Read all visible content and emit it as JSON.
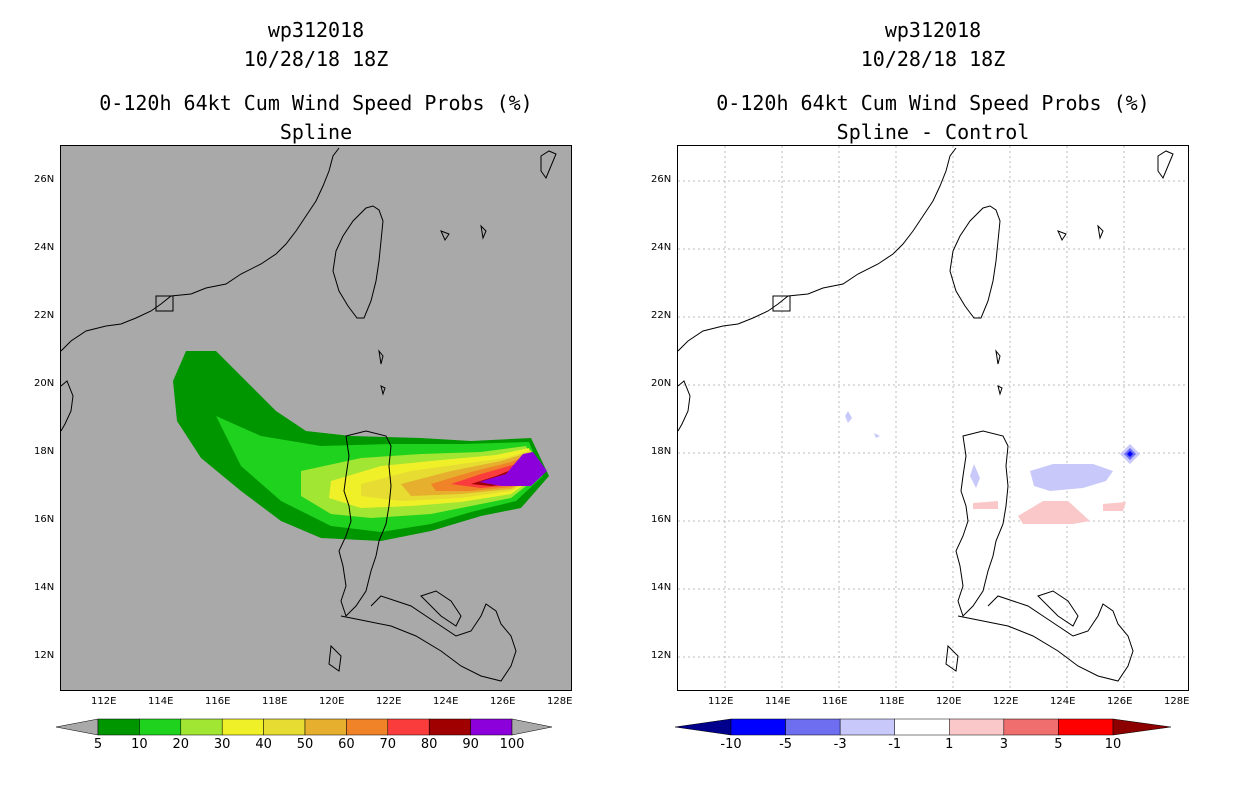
{
  "panels": [
    {
      "id": "left",
      "title_lines": [
        "wp312018",
        "10/28/18 18Z",
        "0-120h 64kt Cum Wind Speed Probs (%)",
        "Spline"
      ],
      "background": "#a9a9a9",
      "grid": false,
      "lon_ticks": [
        "112E",
        "114E",
        "116E",
        "118E",
        "120E",
        "122E",
        "124E",
        "126E",
        "128E"
      ],
      "lat_ticks": [
        "26N",
        "24N",
        "22N",
        "20N",
        "18N",
        "16N",
        "14N",
        "12N"
      ],
      "colorbar": {
        "colors": [
          "#009600",
          "#1ed21e",
          "#a0e632",
          "#f0f028",
          "#e6dc32",
          "#e6af2d",
          "#f08228",
          "#fa3c3c",
          "#a00000",
          "#8c00dc"
        ],
        "labels": [
          "5",
          "10",
          "20",
          "30",
          "40",
          "50",
          "60",
          "70",
          "80",
          "90",
          "100"
        ],
        "arrow_color": "#a9a9a9"
      }
    },
    {
      "id": "right",
      "title_lines": [
        "wp312018",
        "10/28/18 18Z",
        "0-120h 64kt Cum Wind Speed Probs (%)",
        "Spline - Control"
      ],
      "background": "#ffffff",
      "grid": true,
      "lon_ticks": [
        "112E",
        "114E",
        "116E",
        "118E",
        "120E",
        "122E",
        "124E",
        "126E",
        "128E"
      ],
      "lat_ticks": [
        "26N",
        "24N",
        "22N",
        "20N",
        "18N",
        "16N",
        "14N",
        "12N"
      ],
      "colorbar": {
        "colors": [
          "#0000ff",
          "#6e6ef0",
          "#c8c8fa",
          "#ffffff",
          "#fac8c8",
          "#f06e6e",
          "#ff0000"
        ],
        "labels": [
          "-10",
          "-5",
          "-3",
          "-1",
          "1",
          "3",
          "5",
          "10"
        ],
        "arrow_left_color": "#00008c",
        "arrow_right_color": "#8c0000"
      }
    }
  ]
}
